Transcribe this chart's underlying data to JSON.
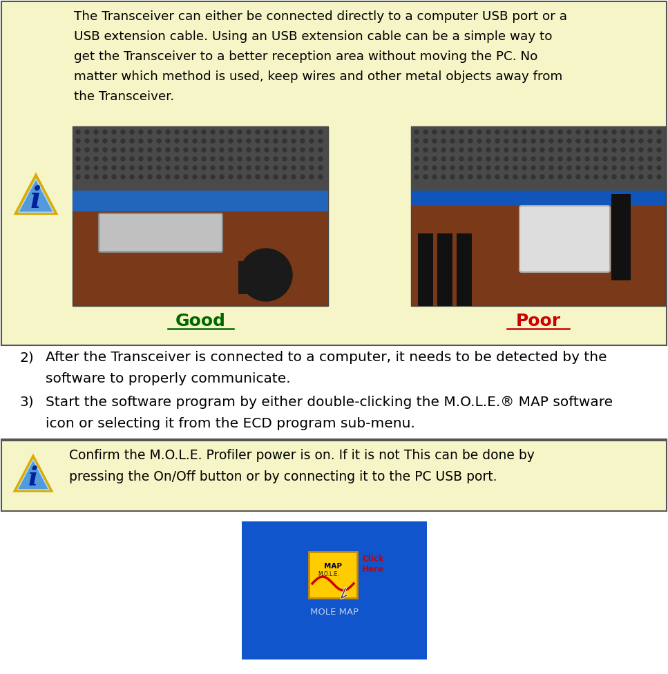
{
  "bg_color_top": "#f5f5c8",
  "bg_color_white": "#ffffff",
  "bg_color_warn": "#f5f5c8",
  "text_color": "#000000",
  "good_color": "#006600",
  "poor_color": "#cc0000",
  "border_color_dark": "#555555",
  "title_lines": [
    "The Transceiver can either be connected directly to a computer USB port or a",
    "USB extension cable. Using an USB extension cable can be a simple way to",
    "get the Transceiver to a better reception area without moving the PC. No",
    "matter which method is used, keep wires and other metal objects away from",
    "the Transceiver."
  ],
  "good_label": "Good",
  "poor_label": "Poor",
  "item2_lines": [
    "After the Transceiver is connected to a computer, it needs to be detected by the",
    "software to properly communicate."
  ],
  "item3_lines": [
    "Start the software program by either double-clicking the M.O.L.E.® MAP software",
    "icon or selecting it from the ECD program sub-menu."
  ],
  "warn_lines": [
    "Confirm the M.O.L.E. Profiler power is on. If it is not This can be done by",
    "pressing the On/Off button or by connecting it to the PC USB port."
  ],
  "mole_map_label": "MOLE MAP",
  "fig_width": 9.67,
  "fig_height": 9.76
}
